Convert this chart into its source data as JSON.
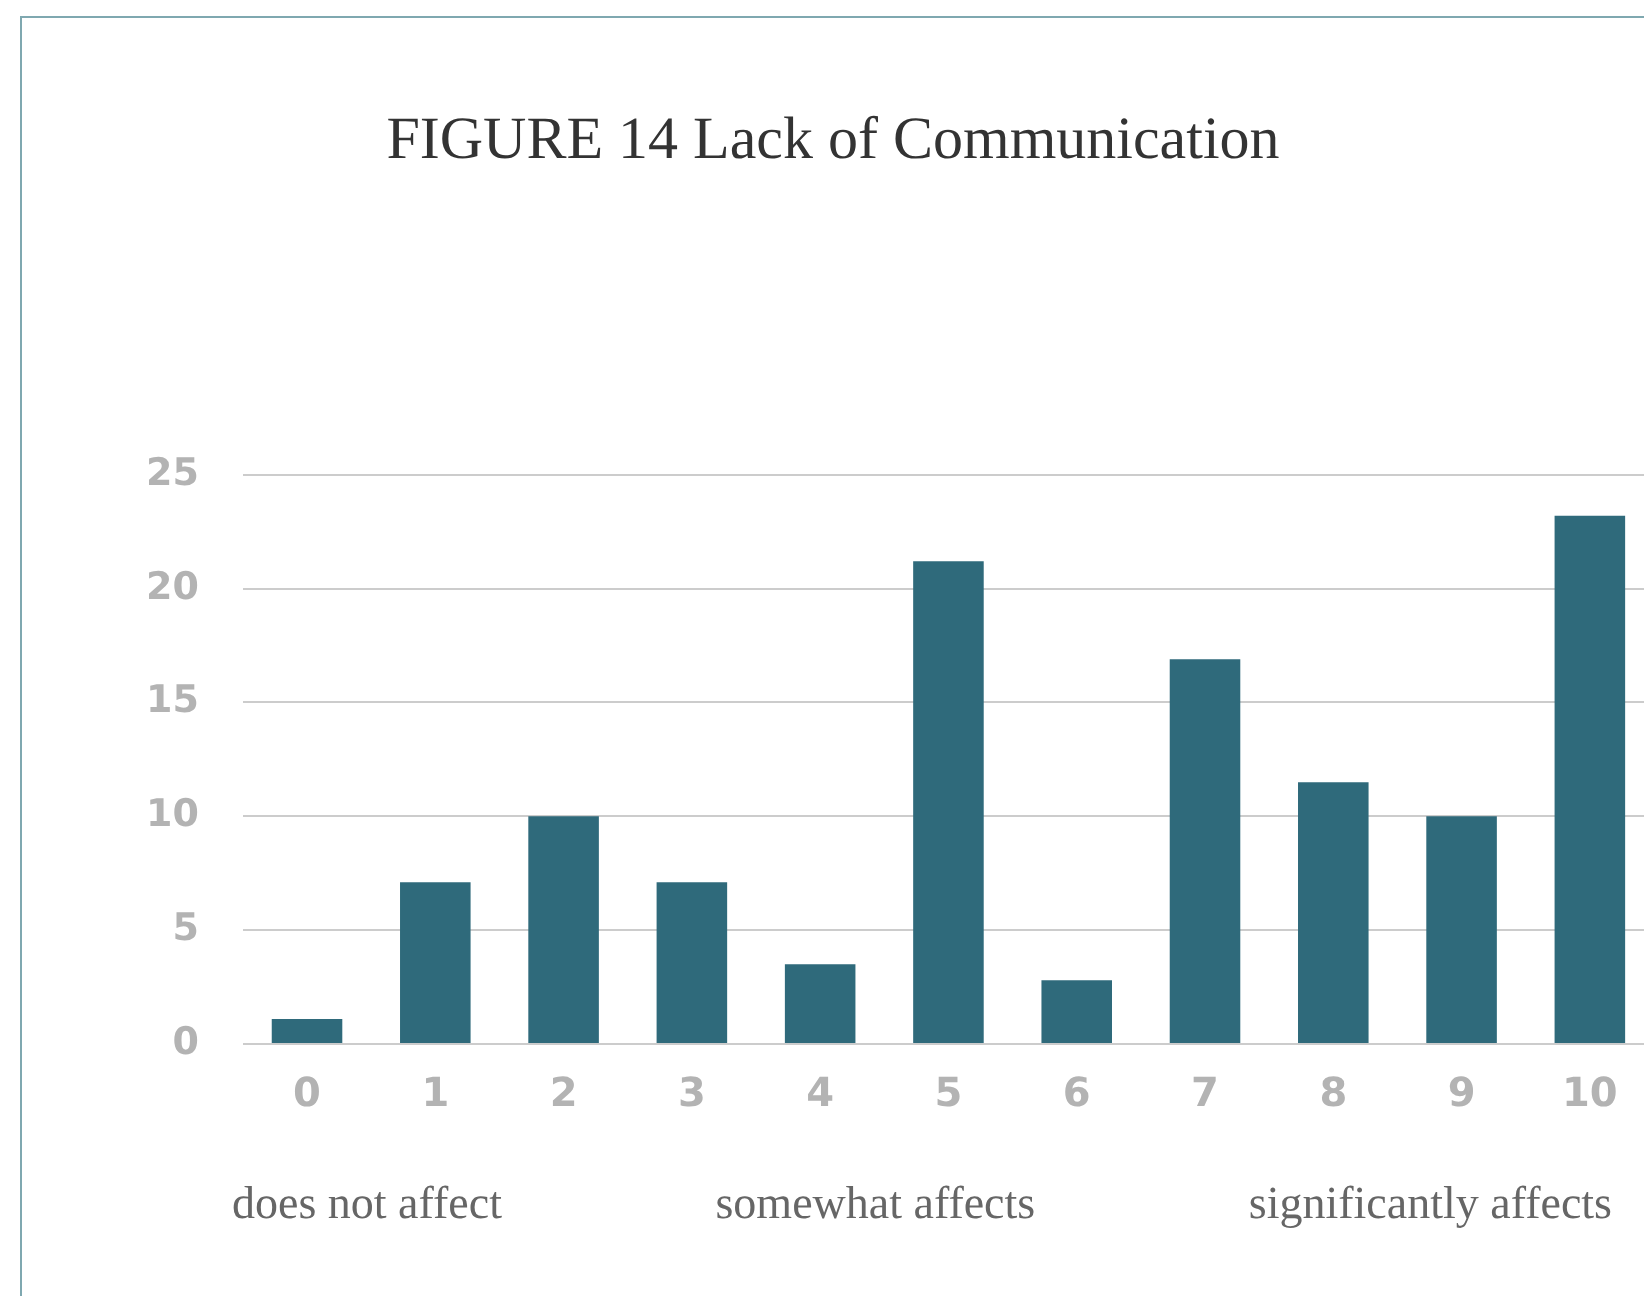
{
  "chart_data": {
    "type": "bar",
    "title": "FIGURE 14 Lack of Communication",
    "categories": [
      "0",
      "1",
      "2",
      "3",
      "4",
      "5",
      "6",
      "7",
      "8",
      "9",
      "10"
    ],
    "values": [
      1.1,
      7.1,
      10,
      7.1,
      3.5,
      21.2,
      2.8,
      16.9,
      11.5,
      10,
      23.2
    ],
    "color": "#2f6a7b",
    "ylim": [
      0,
      25
    ],
    "yticks": [
      0,
      5,
      10,
      15,
      20,
      25
    ],
    "grid": "y",
    "annotations": [
      "does not affect",
      "somewhat affects",
      "significantly affects"
    ]
  }
}
